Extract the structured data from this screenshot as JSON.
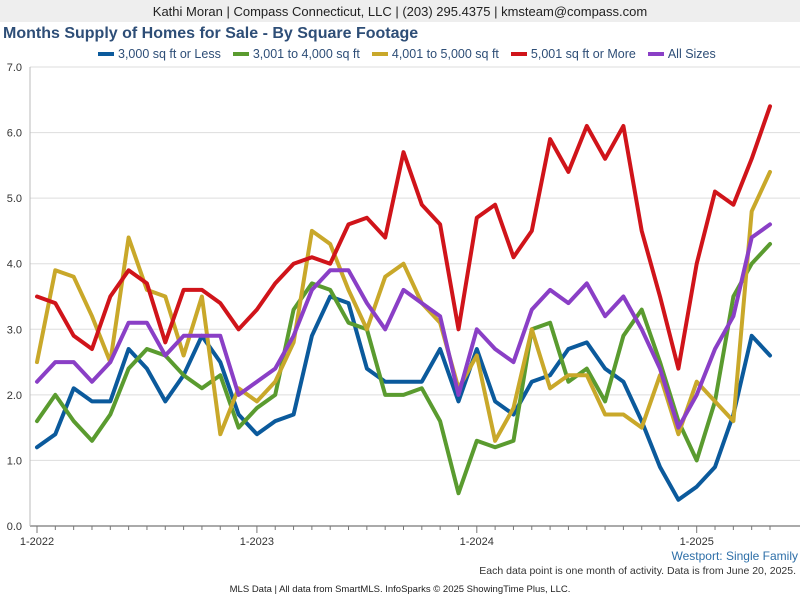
{
  "header": {
    "contact": "Kathi Moran | Compass Connecticut, LLC | (203) 295.4375 | kmsteam@compass.com"
  },
  "footer": {
    "region": "Westport: Single Family",
    "note": "Each data point is one month of activity. Data is from June 20, 2025.",
    "source": "MLS Data | All data from SmartMLS. InfoSparks © 2025 ShowingTime Plus, LLC."
  },
  "chart_data": {
    "type": "line",
    "title": "Months Supply of Homes for Sale - By Square Footage",
    "xlabel": "",
    "ylabel": "",
    "ylim": [
      0,
      7
    ],
    "yticks": [
      "0.0",
      "1.0",
      "2.0",
      "3.0",
      "4.0",
      "5.0",
      "6.0",
      "7.0"
    ],
    "xticks": [
      {
        "label": "1-2022",
        "index": 0
      },
      {
        "label": "1-2023",
        "index": 12
      },
      {
        "label": "1-2024",
        "index": 24
      },
      {
        "label": "1-2025",
        "index": 36
      }
    ],
    "x": [
      "2022-01",
      "2022-02",
      "2022-03",
      "2022-04",
      "2022-05",
      "2022-06",
      "2022-07",
      "2022-08",
      "2022-09",
      "2022-10",
      "2022-11",
      "2022-12",
      "2023-01",
      "2023-02",
      "2023-03",
      "2023-04",
      "2023-05",
      "2023-06",
      "2023-07",
      "2023-08",
      "2023-09",
      "2023-10",
      "2023-11",
      "2023-12",
      "2024-01",
      "2024-02",
      "2024-03",
      "2024-04",
      "2024-05",
      "2024-06",
      "2024-07",
      "2024-08",
      "2024-09",
      "2024-10",
      "2024-11",
      "2024-12",
      "2025-01",
      "2025-02",
      "2025-03",
      "2025-04",
      "2025-05"
    ],
    "grid": true,
    "legend_position": "top",
    "series": [
      {
        "name": "3,000 sq ft or Less",
        "color": "#0b5a9c",
        "values": [
          1.2,
          1.4,
          2.1,
          1.9,
          1.9,
          2.7,
          2.4,
          1.9,
          2.3,
          2.9,
          2.5,
          1.7,
          1.4,
          1.6,
          1.7,
          2.9,
          3.5,
          3.4,
          2.4,
          2.2,
          2.2,
          2.2,
          2.7,
          1.9,
          2.7,
          1.9,
          1.7,
          2.2,
          2.3,
          2.7,
          2.8,
          2.4,
          2.2,
          1.6,
          0.9,
          0.4,
          0.6,
          0.9,
          1.7,
          2.9,
          2.6
        ]
      },
      {
        "name": "3,001 to 4,000 sq ft",
        "color": "#5a9b2f",
        "values": [
          1.6,
          2.0,
          1.6,
          1.3,
          1.7,
          2.4,
          2.7,
          2.6,
          2.3,
          2.1,
          2.3,
          1.5,
          1.8,
          2.0,
          3.3,
          3.7,
          3.6,
          3.1,
          3.0,
          2.0,
          2.0,
          2.1,
          1.6,
          0.5,
          1.3,
          1.2,
          1.3,
          3.0,
          3.1,
          2.2,
          2.4,
          1.9,
          2.9,
          3.3,
          2.5,
          1.6,
          1.0,
          1.9,
          3.5,
          4.0,
          4.3
        ]
      },
      {
        "name": "4,001 to 5,000 sq ft",
        "color": "#c9a82a",
        "values": [
          2.5,
          3.9,
          3.8,
          3.2,
          2.5,
          4.4,
          3.6,
          3.5,
          2.6,
          3.5,
          1.4,
          2.1,
          1.9,
          2.2,
          2.8,
          4.5,
          4.3,
          3.6,
          3.0,
          3.8,
          4.0,
          3.4,
          3.1,
          2.1,
          2.6,
          1.3,
          1.8,
          3.0,
          2.1,
          2.3,
          2.3,
          1.7,
          1.7,
          1.5,
          2.3,
          1.4,
          2.2,
          1.9,
          1.6,
          4.8,
          5.4
        ]
      },
      {
        "name": "5,001 sq ft or More",
        "color": "#d0141a",
        "values": [
          3.5,
          3.4,
          2.9,
          2.7,
          3.5,
          3.9,
          3.7,
          2.8,
          3.6,
          3.6,
          3.4,
          3.0,
          3.3,
          3.7,
          4.0,
          4.1,
          4.0,
          4.6,
          4.7,
          4.4,
          5.7,
          4.9,
          4.6,
          3.0,
          4.7,
          4.9,
          4.1,
          4.5,
          5.9,
          5.4,
          6.1,
          5.6,
          6.1,
          4.5,
          3.5,
          2.4,
          4.0,
          5.1,
          4.9,
          5.6,
          6.4
        ]
      },
      {
        "name": "All Sizes",
        "color": "#8a3fc6",
        "values": [
          2.2,
          2.5,
          2.5,
          2.2,
          2.5,
          3.1,
          3.1,
          2.6,
          2.9,
          2.9,
          2.9,
          2.0,
          2.2,
          2.4,
          2.9,
          3.6,
          3.9,
          3.9,
          3.4,
          3.0,
          3.6,
          3.4,
          3.2,
          2.0,
          3.0,
          2.7,
          2.5,
          3.3,
          3.6,
          3.4,
          3.7,
          3.2,
          3.5,
          3.0,
          2.4,
          1.5,
          2.0,
          2.7,
          3.2,
          4.4,
          4.6
        ]
      }
    ]
  }
}
